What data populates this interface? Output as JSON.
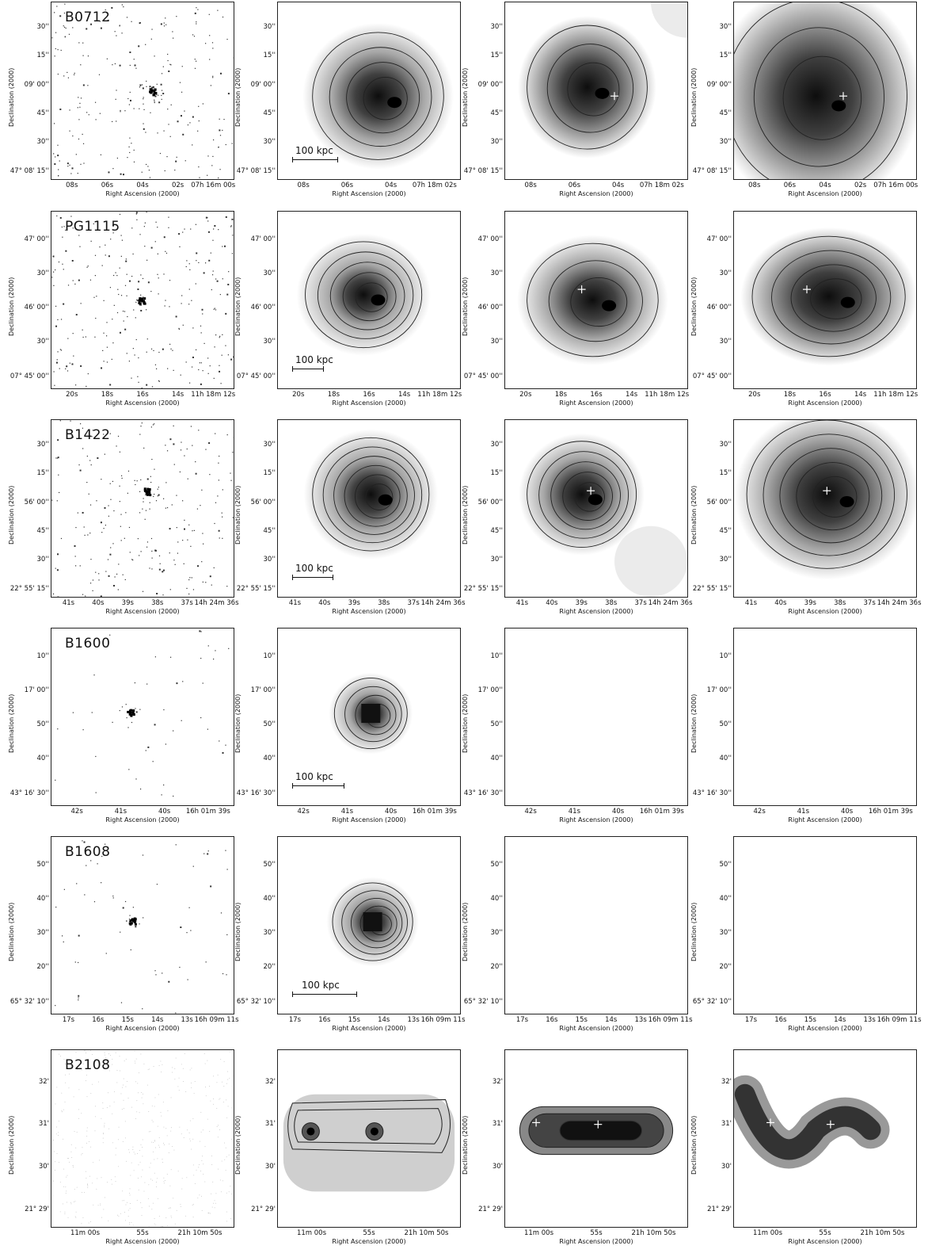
{
  "labels": {
    "xlabel": "Right Ascension (2000)",
    "ylabel": "Declination (2000)",
    "scale": "100 kpc"
  },
  "colors": {
    "ink": "#111111",
    "background": "#ffffff",
    "grey_dark": "#1a1a1a",
    "grey_light": "#f4f4f4"
  },
  "rows": [
    {
      "name": "B0712",
      "yticks": [
        "30''",
        "15''",
        "09' 00''",
        "45''",
        "30''",
        "47° 08' 15''"
      ],
      "xticks": [
        "08s",
        "06s",
        "04s",
        "02s",
        "07h 16m 00s"
      ],
      "xticks_b": [
        "08s",
        "06s",
        "04s",
        "07h 18m 02s"
      ],
      "panels": [
        {
          "kind": "points",
          "center": [
            0.55,
            0.5
          ],
          "npoints": 260,
          "cluster": 0.05
        },
        {
          "kind": "contours",
          "blob": {
            "cx": 0.55,
            "cy": 0.53,
            "rx": 0.36,
            "ry": 0.36,
            "core": 0.6
          },
          "levels": 4,
          "scale": true
        },
        {
          "kind": "contours",
          "blob": {
            "cx": 0.45,
            "cy": 0.48,
            "rx": 0.33,
            "ry": 0.35,
            "core": 0.7
          },
          "levels": 3,
          "cross": [
            0.6,
            0.53
          ],
          "haze": "tr"
        },
        {
          "kind": "contours",
          "blob": {
            "cx": 0.45,
            "cy": 0.53,
            "rx": 0.5,
            "ry": 0.55,
            "core": 0.7
          },
          "levels": 3,
          "cross": [
            0.6,
            0.53
          ]
        }
      ]
    },
    {
      "name": "PG1115",
      "yticks": [
        "47' 00''",
        "30''",
        "46' 00''",
        "30''",
        "07° 45' 00''"
      ],
      "xticks": [
        "20s",
        "18s",
        "16s",
        "14s",
        "11h 18m 12s"
      ],
      "xticks_b": [
        "20s",
        "18s",
        "16s",
        "14s",
        "11h 18m 12s"
      ],
      "panels": [
        {
          "kind": "points",
          "center": [
            0.49,
            0.5
          ],
          "npoints": 300,
          "cluster": 0.02
        },
        {
          "kind": "contours",
          "blob": {
            "cx": 0.47,
            "cy": 0.47,
            "rx": 0.32,
            "ry": 0.3,
            "core": 0.5
          },
          "levels": 5,
          "scale": true
        },
        {
          "kind": "contours",
          "blob": {
            "cx": 0.48,
            "cy": 0.5,
            "rx": 0.36,
            "ry": 0.32,
            "core": 0.6
          },
          "levels": 3,
          "cross": [
            0.42,
            0.44
          ]
        },
        {
          "kind": "contours",
          "blob": {
            "cx": 0.52,
            "cy": 0.48,
            "rx": 0.42,
            "ry": 0.34,
            "core": 0.7
          },
          "levels": 4,
          "cross": [
            0.4,
            0.44
          ]
        }
      ]
    },
    {
      "name": "B1422",
      "yticks": [
        "30''",
        "15''",
        "56' 00''",
        "45''",
        "30''",
        "22° 55' 15''"
      ],
      "xticks": [
        "41s",
        "40s",
        "39s",
        "38s",
        "37s",
        "14h 24m 36s"
      ],
      "xticks_b": [
        "41s",
        "40s",
        "39s",
        "38s",
        "37s",
        "14h 24m 36s"
      ],
      "panels": [
        {
          "kind": "points",
          "center": [
            0.52,
            0.4
          ],
          "npoints": 240,
          "cluster": 0.06
        },
        {
          "kind": "contours",
          "blob": {
            "cx": 0.51,
            "cy": 0.42,
            "rx": 0.32,
            "ry": 0.32,
            "core": 0.55
          },
          "levels": 6,
          "scale": true
        },
        {
          "kind": "contours",
          "blob": {
            "cx": 0.42,
            "cy": 0.42,
            "rx": 0.3,
            "ry": 0.3,
            "core": 0.6
          },
          "levels": 5,
          "cross": [
            0.47,
            0.4
          ],
          "haze": "br"
        },
        {
          "kind": "contours",
          "blob": {
            "cx": 0.51,
            "cy": 0.42,
            "rx": 0.44,
            "ry": 0.42,
            "core": 0.65
          },
          "levels": 5,
          "cross": [
            0.51,
            0.4
          ]
        }
      ]
    },
    {
      "name": "B1600",
      "yticks": [
        "10''",
        "17' 00''",
        "50''",
        "40''",
        "43° 16' 30''"
      ],
      "xticks": [
        "42s",
        "41s",
        "40s",
        "16h 01m 39s"
      ],
      "xticks_b": [
        "42s",
        "41s",
        "40s",
        "16h 01m 39s"
      ],
      "panels": [
        {
          "kind": "points",
          "center": [
            0.43,
            0.47
          ],
          "npoints": 55,
          "cluster": 0.04
        },
        {
          "kind": "contours",
          "blob": {
            "cx": 0.51,
            "cy": 0.48,
            "rx": 0.2,
            "ry": 0.2,
            "core": 0.5
          },
          "levels": 4,
          "scale": true,
          "pixel": true
        },
        {
          "kind": "gradient",
          "from": "bl",
          "dark": 0.75,
          "cross": [
            0.49,
            0.48
          ]
        },
        {
          "kind": "gradient",
          "from": "bl",
          "dark": 0.95,
          "cross": [
            0.48,
            0.47
          ]
        }
      ]
    },
    {
      "name": "B1608",
      "yticks": [
        "50''",
        "40''",
        "30''",
        "20''",
        "65° 32' 10''"
      ],
      "xticks": [
        "17s",
        "16s",
        "15s",
        "14s",
        "13s",
        "16h 09m 11s"
      ],
      "xticks_b": [
        "17s",
        "16s",
        "15s",
        "14s",
        "13s",
        "16h 09m 11s"
      ],
      "panels": [
        {
          "kind": "points",
          "center": [
            0.44,
            0.47
          ],
          "npoints": 70,
          "cluster": 0.03
        },
        {
          "kind": "contours",
          "blob": {
            "cx": 0.52,
            "cy": 0.48,
            "rx": 0.22,
            "ry": 0.22,
            "core": 0.5
          },
          "levels": 5,
          "scale": true,
          "pixel": true
        },
        {
          "kind": "gradient",
          "from": "b",
          "dark": 0.8,
          "cross": [
            0.49,
            0.48
          ]
        },
        {
          "kind": "gradient",
          "from": "br",
          "dark": 1.0,
          "cross": [
            0.49,
            0.47
          ]
        }
      ]
    },
    {
      "name": "B2108",
      "yticks": [
        "32'",
        "31'",
        "30'",
        "21° 29'"
      ],
      "xticks": [
        "11m 00s",
        "55s",
        "21h 10m 50s"
      ],
      "xticks_b": [
        "11m 00s",
        "55s",
        "21h 10m 50s"
      ],
      "panels": [
        {
          "kind": "points",
          "center": [
            0.5,
            0.5
          ],
          "npoints": 500,
          "cluster": 1.0
        },
        {
          "kind": "bar",
          "cross": null,
          "scale": false
        },
        {
          "kind": "bar2",
          "cross": [
            [
              0.17,
              0.41
            ],
            [
              0.51,
              0.42
            ]
          ]
        },
        {
          "kind": "arc",
          "cross": [
            [
              0.2,
              0.41
            ],
            [
              0.53,
              0.42
            ]
          ]
        }
      ]
    }
  ]
}
